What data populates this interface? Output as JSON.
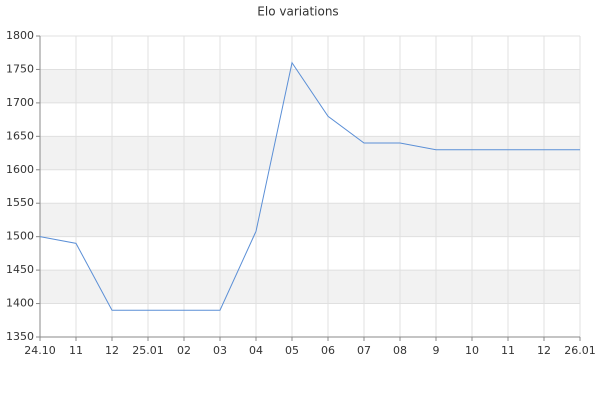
{
  "chart_data": {
    "type": "line",
    "title": "Elo variations",
    "categories": [
      "24.10",
      "11",
      "12",
      "25.01",
      "02",
      "03",
      "04",
      "05",
      "06",
      "07",
      "08",
      "9",
      "10",
      "11",
      "12",
      "26.01"
    ],
    "series": [
      {
        "name": "Elo",
        "color": "#5b8fd6",
        "values": [
          1500,
          1490,
          1390,
          1390,
          1390,
          1390,
          1508,
          1760,
          1680,
          1640,
          1640,
          1630,
          1630,
          1630,
          1630,
          1630
        ]
      }
    ],
    "ylim": [
      1350,
      1800
    ],
    "yticks": [
      1350,
      1400,
      1450,
      1500,
      1550,
      1600,
      1650,
      1700,
      1750,
      1800
    ],
    "grid": true,
    "alternate_bands": true
  }
}
